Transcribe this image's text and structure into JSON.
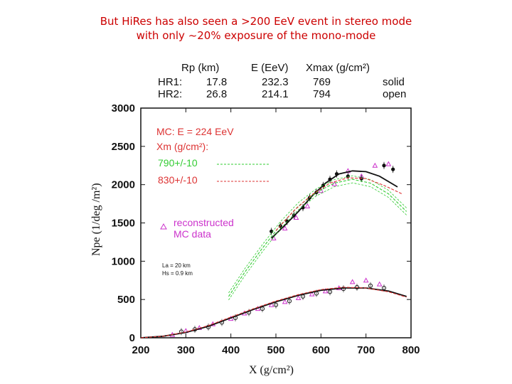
{
  "slide": {
    "title_line1": "But HiRes has also seen a >200 EeV event in stereo mode",
    "title_line2": "with only ~20% exposure of the mono-mode"
  },
  "table": {
    "headers": [
      "Rp (km)",
      "E (EeV)",
      "Xmax (g/cm²)"
    ],
    "rows": [
      {
        "label": "HR1:",
        "rp": "17.8",
        "e": "232.3",
        "xmax": "769",
        "style": "solid"
      },
      {
        "label": "HR2:",
        "rp": "26.8",
        "e": "214.1",
        "xmax": "794",
        "style": "open"
      }
    ]
  },
  "legend": {
    "mc_title": "MC: E = 224 EeV",
    "xm_label": "Xm (g/cm²):",
    "green_label": "790+/-10",
    "red_label": "830+/-10",
    "recon_line1": "reconstructed",
    "recon_line2": "MC data",
    "param1": "La = 20 km",
    "param2": "Hs = 0.9 km"
  },
  "colors": {
    "title": "#cc0000",
    "mc_text": "#dd3333",
    "green": "#33cc33",
    "red": "#dd3333",
    "magenta": "#cc33cc",
    "data": "#111111"
  },
  "chart_data": {
    "type": "scatter",
    "xlabel": "X (g/cm²)",
    "ylabel": "Npe (1/deg /m²)",
    "xlim": [
      200,
      800
    ],
    "ylim": [
      0,
      3000
    ],
    "xticks": [
      200,
      300,
      400,
      500,
      600,
      700,
      800
    ],
    "yticks": [
      0,
      500,
      1000,
      1500,
      2000,
      2500,
      3000
    ],
    "series": [
      {
        "name": "HR1 data (solid)",
        "kind": "points",
        "marker": "filled",
        "color": "#111111",
        "points": [
          [
            490,
            1390
          ],
          [
            510,
            1460
          ],
          [
            525,
            1520
          ],
          [
            540,
            1600
          ],
          [
            560,
            1700
          ],
          [
            575,
            1830
          ],
          [
            590,
            1900
          ],
          [
            605,
            1990
          ],
          [
            620,
            2070
          ],
          [
            635,
            2140
          ],
          [
            660,
            2110
          ],
          [
            690,
            2080
          ],
          [
            740,
            2250
          ],
          [
            760,
            2200
          ]
        ]
      },
      {
        "name": "HR2 data (open)",
        "kind": "points",
        "marker": "open",
        "color": "#111111",
        "points": [
          [
            290,
            80
          ],
          [
            320,
            110
          ],
          [
            350,
            140
          ],
          [
            380,
            200
          ],
          [
            410,
            260
          ],
          [
            440,
            330
          ],
          [
            470,
            380
          ],
          [
            500,
            430
          ],
          [
            530,
            480
          ],
          [
            560,
            540
          ],
          [
            590,
            580
          ],
          [
            620,
            600
          ],
          [
            650,
            640
          ],
          [
            680,
            660
          ],
          [
            710,
            680
          ],
          [
            740,
            650
          ]
        ]
      },
      {
        "name": "reconstructed MC data",
        "kind": "points",
        "marker": "triangle",
        "color": "#cc33cc",
        "points": [
          [
            495,
            1300
          ],
          [
            520,
            1430
          ],
          [
            545,
            1570
          ],
          [
            570,
            1720
          ],
          [
            600,
            1920
          ],
          [
            630,
            2010
          ],
          [
            660,
            2180
          ],
          [
            690,
            2110
          ],
          [
            720,
            2250
          ],
          [
            750,
            2270
          ],
          [
            270,
            40
          ],
          [
            300,
            90
          ],
          [
            330,
            130
          ],
          [
            360,
            180
          ],
          [
            400,
            250
          ],
          [
            430,
            320
          ],
          [
            460,
            380
          ],
          [
            490,
            430
          ],
          [
            520,
            470
          ],
          [
            550,
            520
          ],
          [
            580,
            570
          ],
          [
            610,
            610
          ],
          [
            640,
            650
          ],
          [
            670,
            730
          ],
          [
            700,
            750
          ],
          [
            730,
            700
          ]
        ]
      },
      {
        "name": "fit HR1",
        "kind": "line",
        "color": "#111111",
        "style": "solid",
        "x": [
          490,
          520,
          550,
          580,
          610,
          640,
          670,
          700,
          730,
          770
        ],
        "y": [
          1300,
          1470,
          1650,
          1850,
          2020,
          2140,
          2180,
          2170,
          2110,
          1970
        ]
      },
      {
        "name": "790+/-10",
        "kind": "line",
        "color": "#33cc33",
        "style": "dashed",
        "x": [
          395,
          430,
          470,
          510,
          550,
          590,
          630,
          670,
          710,
          750,
          790
        ],
        "y": [
          540,
          850,
          1170,
          1470,
          1720,
          1900,
          2020,
          2070,
          2020,
          1880,
          1650
        ]
      },
      {
        "name": "830+/-10",
        "kind": "line",
        "color": "#dd3333",
        "style": "dashed",
        "x": [
          500,
          540,
          580,
          620,
          660,
          700,
          740,
          780
        ],
        "y": [
          1400,
          1660,
          1870,
          2020,
          2090,
          2080,
          1990,
          1880
        ]
      },
      {
        "name": "fit HR2",
        "kind": "line",
        "color": "#111111",
        "style": "solid",
        "x": [
          200,
          250,
          300,
          350,
          400,
          450,
          500,
          550,
          600,
          650,
          700,
          750,
          790
        ],
        "y": [
          0,
          20,
          70,
          150,
          260,
          370,
          470,
          555,
          620,
          650,
          650,
          610,
          540
        ]
      },
      {
        "name": "MC HR2",
        "kind": "line",
        "color": "#dd3333",
        "style": "dashed",
        "x": [
          200,
          250,
          300,
          350,
          400,
          450,
          500,
          550,
          600,
          650,
          700,
          750,
          790
        ],
        "y": [
          0,
          20,
          75,
          160,
          270,
          380,
          480,
          565,
          630,
          660,
          650,
          600,
          530
        ]
      }
    ]
  }
}
